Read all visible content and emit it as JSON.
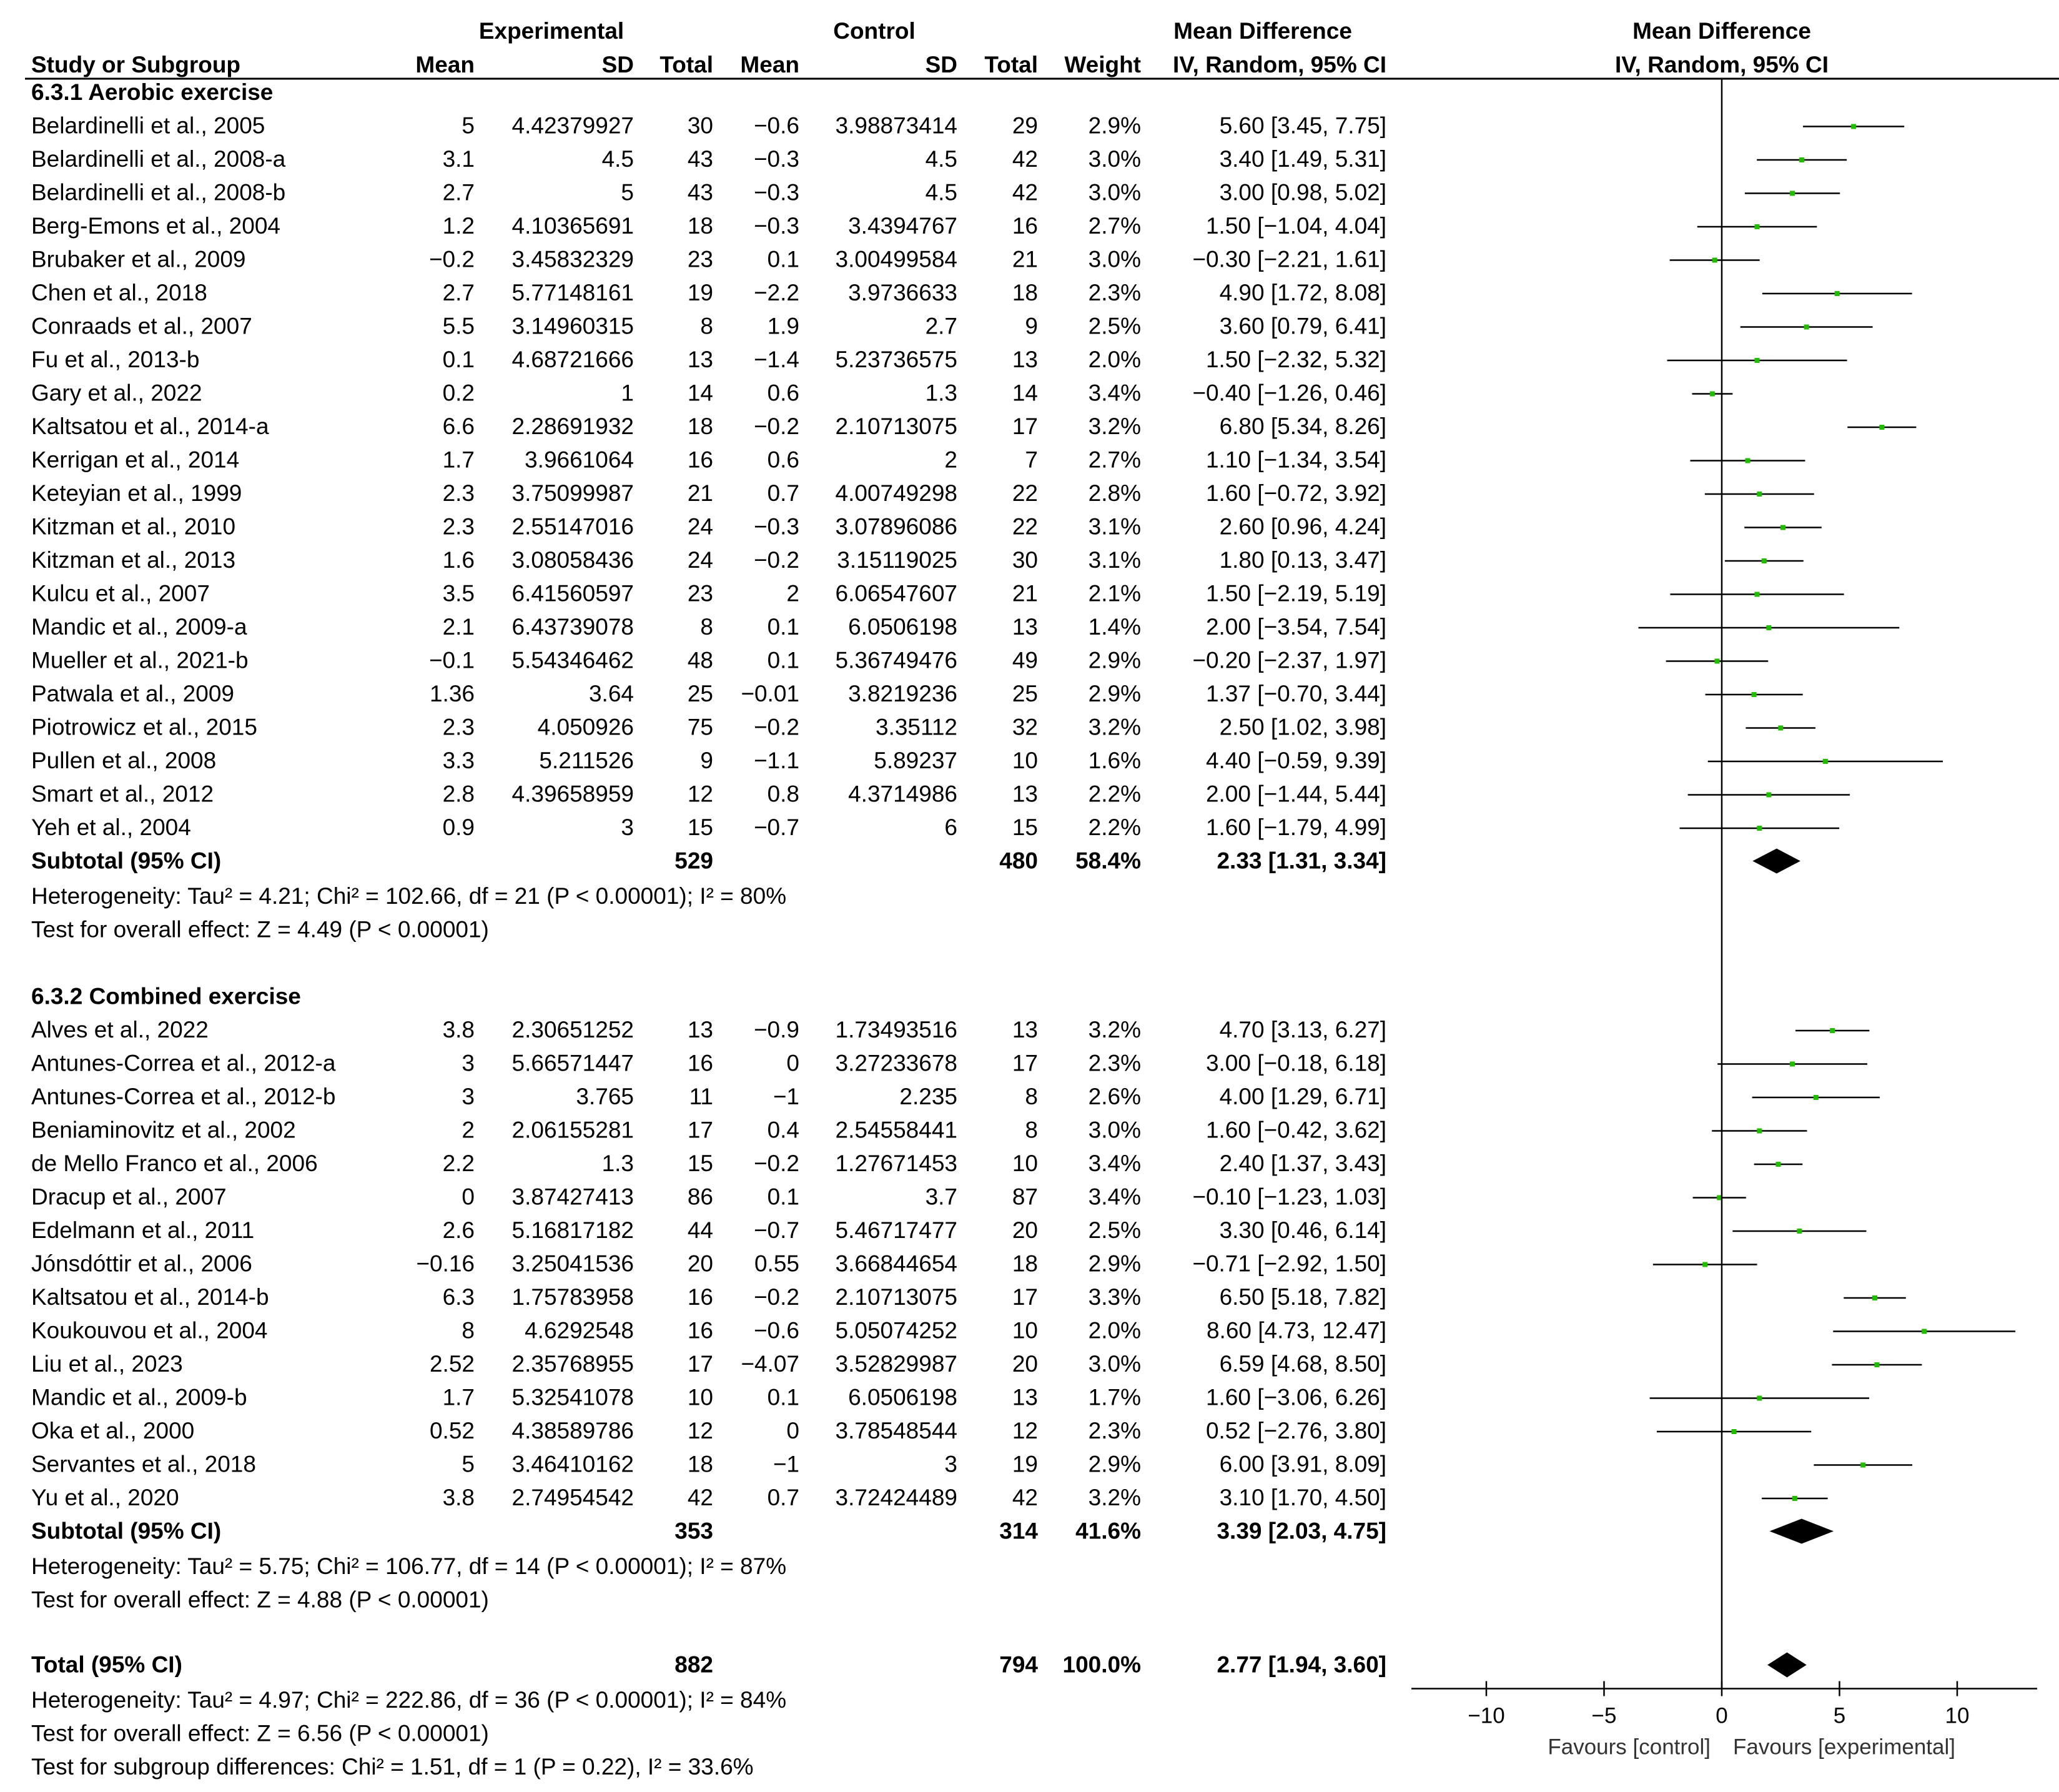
{
  "headers": {
    "experimental": "Experimental",
    "control": "Control",
    "mean_difference": "Mean Difference",
    "study": "Study or Subgroup",
    "mean": "Mean",
    "sd": "SD",
    "total": "Total",
    "weight": "Weight",
    "method": "IV, Random, 95% CI"
  },
  "colors": {
    "point": "#22bb00",
    "line": "#000000",
    "diamond": "#000000"
  },
  "chart_data": {
    "type": "forest",
    "title": "Mean Difference IV, Random, 95% CI",
    "xlim": [
      -13,
      13
    ],
    "ticks": [
      {
        "value": -10,
        "label": "−10"
      },
      {
        "value": -5,
        "label": "−5"
      },
      {
        "value": 0,
        "label": "0"
      },
      {
        "value": 5,
        "label": "5"
      },
      {
        "value": 10,
        "label": "10"
      }
    ],
    "favours_left": "Favours [control]",
    "favours_right": "Favours [experimental]",
    "groups": [
      {
        "title": "6.3.1 Aerobic exercise",
        "studies": [
          {
            "name": "Belardinelli et al., 2005",
            "e_mean": "5",
            "e_sd": "4.42379927",
            "e_total": "30",
            "c_mean": "−0.6",
            "c_sd": "3.98873414",
            "c_total": "29",
            "weight": "2.9%",
            "ci_text": "5.60 [3.45, 7.75]",
            "md": 5.6,
            "lo": 3.45,
            "hi": 7.75
          },
          {
            "name": "Belardinelli et al., 2008-a",
            "e_mean": "3.1",
            "e_sd": "4.5",
            "e_total": "43",
            "c_mean": "−0.3",
            "c_sd": "4.5",
            "c_total": "42",
            "weight": "3.0%",
            "ci_text": "3.40 [1.49, 5.31]",
            "md": 3.4,
            "lo": 1.49,
            "hi": 5.31
          },
          {
            "name": "Belardinelli et al., 2008-b",
            "e_mean": "2.7",
            "e_sd": "5",
            "e_total": "43",
            "c_mean": "−0.3",
            "c_sd": "4.5",
            "c_total": "42",
            "weight": "3.0%",
            "ci_text": "3.00 [0.98, 5.02]",
            "md": 3.0,
            "lo": 0.98,
            "hi": 5.02
          },
          {
            "name": "Berg-Emons et al., 2004",
            "e_mean": "1.2",
            "e_sd": "4.10365691",
            "e_total": "18",
            "c_mean": "−0.3",
            "c_sd": "3.4394767",
            "c_total": "16",
            "weight": "2.7%",
            "ci_text": "1.50 [−1.04, 4.04]",
            "md": 1.5,
            "lo": -1.04,
            "hi": 4.04
          },
          {
            "name": "Brubaker et al., 2009",
            "e_mean": "−0.2",
            "e_sd": "3.45832329",
            "e_total": "23",
            "c_mean": "0.1",
            "c_sd": "3.00499584",
            "c_total": "21",
            "weight": "3.0%",
            "ci_text": "−0.30 [−2.21, 1.61]",
            "md": -0.3,
            "lo": -2.21,
            "hi": 1.61
          },
          {
            "name": "Chen et al., 2018",
            "e_mean": "2.7",
            "e_sd": "5.77148161",
            "e_total": "19",
            "c_mean": "−2.2",
            "c_sd": "3.9736633",
            "c_total": "18",
            "weight": "2.3%",
            "ci_text": "4.90 [1.72, 8.08]",
            "md": 4.9,
            "lo": 1.72,
            "hi": 8.08
          },
          {
            "name": "Conraads et al., 2007",
            "e_mean": "5.5",
            "e_sd": "3.14960315",
            "e_total": "8",
            "c_mean": "1.9",
            "c_sd": "2.7",
            "c_total": "9",
            "weight": "2.5%",
            "ci_text": "3.60 [0.79, 6.41]",
            "md": 3.6,
            "lo": 0.79,
            "hi": 6.41
          },
          {
            "name": "Fu et al., 2013-b",
            "e_mean": "0.1",
            "e_sd": "4.68721666",
            "e_total": "13",
            "c_mean": "−1.4",
            "c_sd": "5.23736575",
            "c_total": "13",
            "weight": "2.0%",
            "ci_text": "1.50 [−2.32, 5.32]",
            "md": 1.5,
            "lo": -2.32,
            "hi": 5.32
          },
          {
            "name": "Gary et al., 2022",
            "e_mean": "0.2",
            "e_sd": "1",
            "e_total": "14",
            "c_mean": "0.6",
            "c_sd": "1.3",
            "c_total": "14",
            "weight": "3.4%",
            "ci_text": "−0.40 [−1.26, 0.46]",
            "md": -0.4,
            "lo": -1.26,
            "hi": 0.46
          },
          {
            "name": "Kaltsatou et al., 2014-a",
            "e_mean": "6.6",
            "e_sd": "2.28691932",
            "e_total": "18",
            "c_mean": "−0.2",
            "c_sd": "2.10713075",
            "c_total": "17",
            "weight": "3.2%",
            "ci_text": "6.80 [5.34, 8.26]",
            "md": 6.8,
            "lo": 5.34,
            "hi": 8.26
          },
          {
            "name": "Kerrigan et al., 2014",
            "e_mean": "1.7",
            "e_sd": "3.9661064",
            "e_total": "16",
            "c_mean": "0.6",
            "c_sd": "2",
            "c_total": "7",
            "weight": "2.7%",
            "ci_text": "1.10 [−1.34, 3.54]",
            "md": 1.1,
            "lo": -1.34,
            "hi": 3.54
          },
          {
            "name": "Keteyian et al., 1999",
            "e_mean": "2.3",
            "e_sd": "3.75099987",
            "e_total": "21",
            "c_mean": "0.7",
            "c_sd": "4.00749298",
            "c_total": "22",
            "weight": "2.8%",
            "ci_text": "1.60 [−0.72, 3.92]",
            "md": 1.6,
            "lo": -0.72,
            "hi": 3.92
          },
          {
            "name": "Kitzman et al., 2010",
            "e_mean": "2.3",
            "e_sd": "2.55147016",
            "e_total": "24",
            "c_mean": "−0.3",
            "c_sd": "3.07896086",
            "c_total": "22",
            "weight": "3.1%",
            "ci_text": "2.60 [0.96, 4.24]",
            "md": 2.6,
            "lo": 0.96,
            "hi": 4.24
          },
          {
            "name": "Kitzman et al., 2013",
            "e_mean": "1.6",
            "e_sd": "3.08058436",
            "e_total": "24",
            "c_mean": "−0.2",
            "c_sd": "3.15119025",
            "c_total": "30",
            "weight": "3.1%",
            "ci_text": "1.80 [0.13, 3.47]",
            "md": 1.8,
            "lo": 0.13,
            "hi": 3.47
          },
          {
            "name": "Kulcu et al., 2007",
            "e_mean": "3.5",
            "e_sd": "6.41560597",
            "e_total": "23",
            "c_mean": "2",
            "c_sd": "6.06547607",
            "c_total": "21",
            "weight": "2.1%",
            "ci_text": "1.50 [−2.19, 5.19]",
            "md": 1.5,
            "lo": -2.19,
            "hi": 5.19
          },
          {
            "name": "Mandic et al., 2009-a",
            "e_mean": "2.1",
            "e_sd": "6.43739078",
            "e_total": "8",
            "c_mean": "0.1",
            "c_sd": "6.0506198",
            "c_total": "13",
            "weight": "1.4%",
            "ci_text": "2.00 [−3.54, 7.54]",
            "md": 2.0,
            "lo": -3.54,
            "hi": 7.54
          },
          {
            "name": "Mueller et al., 2021-b",
            "e_mean": "−0.1",
            "e_sd": "5.54346462",
            "e_total": "48",
            "c_mean": "0.1",
            "c_sd": "5.36749476",
            "c_total": "49",
            "weight": "2.9%",
            "ci_text": "−0.20 [−2.37, 1.97]",
            "md": -0.2,
            "lo": -2.37,
            "hi": 1.97
          },
          {
            "name": "Patwala et al., 2009",
            "e_mean": "1.36",
            "e_sd": "3.64",
            "e_total": "25",
            "c_mean": "−0.01",
            "c_sd": "3.8219236",
            "c_total": "25",
            "weight": "2.9%",
            "ci_text": "1.37 [−0.70, 3.44]",
            "md": 1.37,
            "lo": -0.7,
            "hi": 3.44
          },
          {
            "name": "Piotrowicz et al., 2015",
            "e_mean": "2.3",
            "e_sd": "4.050926",
            "e_total": "75",
            "c_mean": "−0.2",
            "c_sd": "3.35112",
            "c_total": "32",
            "weight": "3.2%",
            "ci_text": "2.50 [1.02, 3.98]",
            "md": 2.5,
            "lo": 1.02,
            "hi": 3.98
          },
          {
            "name": "Pullen et al., 2008",
            "e_mean": "3.3",
            "e_sd": "5.211526",
            "e_total": "9",
            "c_mean": "−1.1",
            "c_sd": "5.89237",
            "c_total": "10",
            "weight": "1.6%",
            "ci_text": "4.40 [−0.59, 9.39]",
            "md": 4.4,
            "lo": -0.59,
            "hi": 9.39
          },
          {
            "name": "Smart et al., 2012",
            "e_mean": "2.8",
            "e_sd": "4.39658959",
            "e_total": "12",
            "c_mean": "0.8",
            "c_sd": "4.3714986",
            "c_total": "13",
            "weight": "2.2%",
            "ci_text": "2.00 [−1.44, 5.44]",
            "md": 2.0,
            "lo": -1.44,
            "hi": 5.44
          },
          {
            "name": "Yeh et al., 2004",
            "e_mean": "0.9",
            "e_sd": "3",
            "e_total": "15",
            "c_mean": "−0.7",
            "c_sd": "6",
            "c_total": "15",
            "weight": "2.2%",
            "ci_text": "1.60 [−1.79, 4.99]",
            "md": 1.6,
            "lo": -1.79,
            "hi": 4.99
          }
        ],
        "subtotal": {
          "label": "Subtotal (95% CI)",
          "e_total": "529",
          "c_total": "480",
          "weight": "58.4%",
          "ci_text": "2.33 [1.31, 3.34]",
          "md": 2.33,
          "lo": 1.31,
          "hi": 3.34
        },
        "heterogeneity": "Heterogeneity: Tau² = 4.21; Chi² = 102.66, df = 21 (P < 0.00001); I² = 80%",
        "overall": "Test for overall effect: Z = 4.49 (P < 0.00001)"
      },
      {
        "title": "6.3.2 Combined exercise",
        "studies": [
          {
            "name": "Alves et al., 2022",
            "e_mean": "3.8",
            "e_sd": "2.30651252",
            "e_total": "13",
            "c_mean": "−0.9",
            "c_sd": "1.73493516",
            "c_total": "13",
            "weight": "3.2%",
            "ci_text": "4.70 [3.13, 6.27]",
            "md": 4.7,
            "lo": 3.13,
            "hi": 6.27
          },
          {
            "name": "Antunes-Correa et al., 2012-a",
            "e_mean": "3",
            "e_sd": "5.66571447",
            "e_total": "16",
            "c_mean": "0",
            "c_sd": "3.27233678",
            "c_total": "17",
            "weight": "2.3%",
            "ci_text": "3.00 [−0.18, 6.18]",
            "md": 3.0,
            "lo": -0.18,
            "hi": 6.18
          },
          {
            "name": "Antunes-Correa et al., 2012-b",
            "e_mean": "3",
            "e_sd": "3.765",
            "e_total": "11",
            "c_mean": "−1",
            "c_sd": "2.235",
            "c_total": "8",
            "weight": "2.6%",
            "ci_text": "4.00 [1.29, 6.71]",
            "md": 4.0,
            "lo": 1.29,
            "hi": 6.71
          },
          {
            "name": "Beniaminovitz et al., 2002",
            "e_mean": "2",
            "e_sd": "2.06155281",
            "e_total": "17",
            "c_mean": "0.4",
            "c_sd": "2.54558441",
            "c_total": "8",
            "weight": "3.0%",
            "ci_text": "1.60 [−0.42, 3.62]",
            "md": 1.6,
            "lo": -0.42,
            "hi": 3.62
          },
          {
            "name": "de Mello Franco et al., 2006",
            "e_mean": "2.2",
            "e_sd": "1.3",
            "e_total": "15",
            "c_mean": "−0.2",
            "c_sd": "1.27671453",
            "c_total": "10",
            "weight": "3.4%",
            "ci_text": "2.40 [1.37, 3.43]",
            "md": 2.4,
            "lo": 1.37,
            "hi": 3.43
          },
          {
            "name": "Dracup et al., 2007",
            "e_mean": "0",
            "e_sd": "3.87427413",
            "e_total": "86",
            "c_mean": "0.1",
            "c_sd": "3.7",
            "c_total": "87",
            "weight": "3.4%",
            "ci_text": "−0.10 [−1.23, 1.03]",
            "md": -0.1,
            "lo": -1.23,
            "hi": 1.03
          },
          {
            "name": "Edelmann et al., 2011",
            "e_mean": "2.6",
            "e_sd": "5.16817182",
            "e_total": "44",
            "c_mean": "−0.7",
            "c_sd": "5.46717477",
            "c_total": "20",
            "weight": "2.5%",
            "ci_text": "3.30 [0.46, 6.14]",
            "md": 3.3,
            "lo": 0.46,
            "hi": 6.14
          },
          {
            "name": "Jónsdóttir et al., 2006",
            "e_mean": "−0.16",
            "e_sd": "3.25041536",
            "e_total": "20",
            "c_mean": "0.55",
            "c_sd": "3.66844654",
            "c_total": "18",
            "weight": "2.9%",
            "ci_text": "−0.71 [−2.92, 1.50]",
            "md": -0.71,
            "lo": -2.92,
            "hi": 1.5
          },
          {
            "name": "Kaltsatou et al., 2014-b",
            "e_mean": "6.3",
            "e_sd": "1.75783958",
            "e_total": "16",
            "c_mean": "−0.2",
            "c_sd": "2.10713075",
            "c_total": "17",
            "weight": "3.3%",
            "ci_text": "6.50 [5.18, 7.82]",
            "md": 6.5,
            "lo": 5.18,
            "hi": 7.82
          },
          {
            "name": "Koukouvou et al., 2004",
            "e_mean": "8",
            "e_sd": "4.6292548",
            "e_total": "16",
            "c_mean": "−0.6",
            "c_sd": "5.05074252",
            "c_total": "10",
            "weight": "2.0%",
            "ci_text": "8.60 [4.73, 12.47]",
            "md": 8.6,
            "lo": 4.73,
            "hi": 12.47
          },
          {
            "name": "Liu et al., 2023",
            "e_mean": "2.52",
            "e_sd": "2.35768955",
            "e_total": "17",
            "c_mean": "−4.07",
            "c_sd": "3.52829987",
            "c_total": "20",
            "weight": "3.0%",
            "ci_text": "6.59 [4.68, 8.50]",
            "md": 6.59,
            "lo": 4.68,
            "hi": 8.5
          },
          {
            "name": "Mandic et al., 2009-b",
            "e_mean": "1.7",
            "e_sd": "5.32541078",
            "e_total": "10",
            "c_mean": "0.1",
            "c_sd": "6.0506198",
            "c_total": "13",
            "weight": "1.7%",
            "ci_text": "1.60 [−3.06, 6.26]",
            "md": 1.6,
            "lo": -3.06,
            "hi": 6.26
          },
          {
            "name": "Oka et al., 2000",
            "e_mean": "0.52",
            "e_sd": "4.38589786",
            "e_total": "12",
            "c_mean": "0",
            "c_sd": "3.78548544",
            "c_total": "12",
            "weight": "2.3%",
            "ci_text": "0.52 [−2.76, 3.80]",
            "md": 0.52,
            "lo": -2.76,
            "hi": 3.8
          },
          {
            "name": "Servantes et al., 2018",
            "e_mean": "5",
            "e_sd": "3.46410162",
            "e_total": "18",
            "c_mean": "−1",
            "c_sd": "3",
            "c_total": "19",
            "weight": "2.9%",
            "ci_text": "6.00 [3.91, 8.09]",
            "md": 6.0,
            "lo": 3.91,
            "hi": 8.09
          },
          {
            "name": "Yu et al., 2020",
            "e_mean": "3.8",
            "e_sd": "2.74954542",
            "e_total": "42",
            "c_mean": "0.7",
            "c_sd": "3.72424489",
            "c_total": "42",
            "weight": "3.2%",
            "ci_text": "3.10 [1.70, 4.50]",
            "md": 3.1,
            "lo": 1.7,
            "hi": 4.5
          }
        ],
        "subtotal": {
          "label": "Subtotal (95% CI)",
          "e_total": "353",
          "c_total": "314",
          "weight": "41.6%",
          "ci_text": "3.39 [2.03, 4.75]",
          "md": 3.39,
          "lo": 2.03,
          "hi": 4.75
        },
        "heterogeneity": "Heterogeneity: Tau² = 5.75; Chi² = 106.77, df = 14 (P < 0.00001); I² = 87%",
        "overall": "Test for overall effect: Z = 4.88 (P < 0.00001)"
      }
    ],
    "total": {
      "label": "Total (95% CI)",
      "e_total": "882",
      "c_total": "794",
      "weight": "100.0%",
      "ci_text": "2.77 [1.94, 3.60]",
      "md": 2.77,
      "lo": 1.94,
      "hi": 3.6
    },
    "footer": [
      "Heterogeneity: Tau² = 4.97; Chi² = 222.86, df = 36 (P < 0.00001); I² = 84%",
      "Test for overall effect: Z = 6.56 (P < 0.00001)",
      "Test for subgroup differences: Chi² = 1.51, df = 1 (P = 0.22), I² = 33.6%"
    ]
  }
}
